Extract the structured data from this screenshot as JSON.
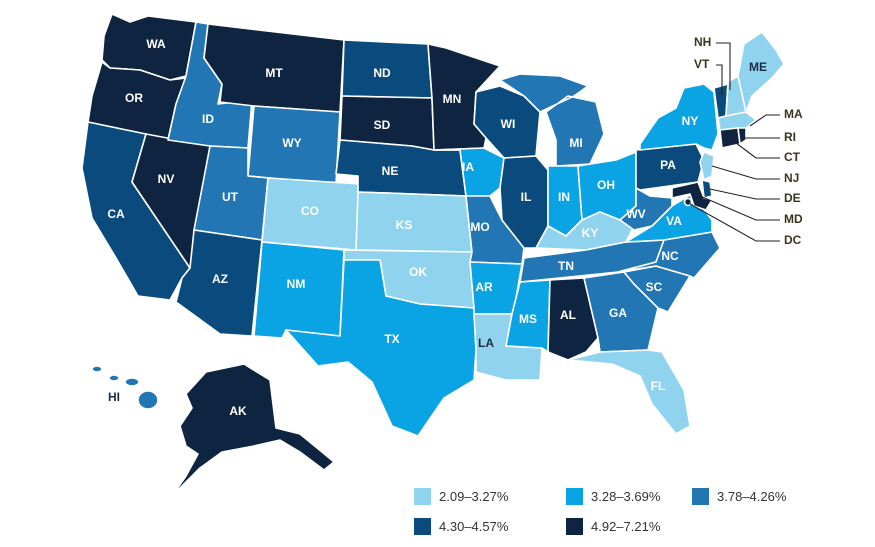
{
  "colors": {
    "bin1": "#8fd3ef",
    "bin2": "#0aa3e3",
    "bin3": "#2176b3",
    "bin4": "#0b4a7c",
    "bin5": "#0e2440"
  },
  "legend": [
    {
      "label": "2.09–3.27%",
      "bin": "bin1"
    },
    {
      "label": "3.28–3.69%",
      "bin": "bin2"
    },
    {
      "label": "3.78–4.26%",
      "bin": "bin3"
    },
    {
      "label": "4.30–4.57%",
      "bin": "bin4"
    },
    {
      "label": "4.92–7.21%",
      "bin": "bin5"
    }
  ],
  "states": {
    "WA": {
      "abbr": "WA",
      "bin": "bin5"
    },
    "OR": {
      "abbr": "OR",
      "bin": "bin5"
    },
    "CA": {
      "abbr": "CA",
      "bin": "bin4"
    },
    "NV": {
      "abbr": "NV",
      "bin": "bin5"
    },
    "ID": {
      "abbr": "ID",
      "bin": "bin3"
    },
    "MT": {
      "abbr": "MT",
      "bin": "bin5"
    },
    "WY": {
      "abbr": "WY",
      "bin": "bin3"
    },
    "UT": {
      "abbr": "UT",
      "bin": "bin3"
    },
    "AZ": {
      "abbr": "AZ",
      "bin": "bin4"
    },
    "CO": {
      "abbr": "CO",
      "bin": "bin1"
    },
    "NM": {
      "abbr": "NM",
      "bin": "bin2"
    },
    "ND": {
      "abbr": "ND",
      "bin": "bin4"
    },
    "SD": {
      "abbr": "SD",
      "bin": "bin5"
    },
    "NE": {
      "abbr": "NE",
      "bin": "bin4"
    },
    "KS": {
      "abbr": "KS",
      "bin": "bin1"
    },
    "OK": {
      "abbr": "OK",
      "bin": "bin1"
    },
    "TX": {
      "abbr": "TX",
      "bin": "bin2"
    },
    "MN": {
      "abbr": "MN",
      "bin": "bin5"
    },
    "IA": {
      "abbr": "IA",
      "bin": "bin2"
    },
    "MO": {
      "abbr": "MO",
      "bin": "bin3"
    },
    "AR": {
      "abbr": "AR",
      "bin": "bin2"
    },
    "LA": {
      "abbr": "LA",
      "bin": "bin1"
    },
    "WI": {
      "abbr": "WI",
      "bin": "bin4"
    },
    "IL": {
      "abbr": "IL",
      "bin": "bin4"
    },
    "MI": {
      "abbr": "MI",
      "bin": "bin3"
    },
    "IN": {
      "abbr": "IN",
      "bin": "bin2"
    },
    "OH": {
      "abbr": "OH",
      "bin": "bin2"
    },
    "KY": {
      "abbr": "KY",
      "bin": "bin1"
    },
    "TN": {
      "abbr": "TN",
      "bin": "bin3"
    },
    "MS": {
      "abbr": "MS",
      "bin": "bin2"
    },
    "AL": {
      "abbr": "AL",
      "bin": "bin5"
    },
    "GA": {
      "abbr": "GA",
      "bin": "bin3"
    },
    "FL": {
      "abbr": "FL",
      "bin": "bin1"
    },
    "SC": {
      "abbr": "SC",
      "bin": "bin3"
    },
    "NC": {
      "abbr": "NC",
      "bin": "bin3"
    },
    "VA": {
      "abbr": "VA",
      "bin": "bin2"
    },
    "WV": {
      "abbr": "WV",
      "bin": "bin3"
    },
    "PA": {
      "abbr": "PA",
      "bin": "bin4"
    },
    "NY": {
      "abbr": "NY",
      "bin": "bin2"
    },
    "ME": {
      "abbr": "ME",
      "bin": "bin1"
    },
    "VT": {
      "abbr": "VT",
      "bin": "bin4"
    },
    "NH": {
      "abbr": "NH",
      "bin": "bin1"
    },
    "MA": {
      "abbr": "MA",
      "bin": "bin1"
    },
    "RI": {
      "abbr": "RI",
      "bin": "bin5"
    },
    "CT": {
      "abbr": "CT",
      "bin": "bin5"
    },
    "NJ": {
      "abbr": "NJ",
      "bin": "bin1"
    },
    "DE": {
      "abbr": "DE",
      "bin": "bin4"
    },
    "MD": {
      "abbr": "MD",
      "bin": "bin5"
    },
    "DC": {
      "abbr": "DC",
      "bin": "bin5"
    },
    "AK": {
      "abbr": "AK",
      "bin": "bin5"
    },
    "HI": {
      "abbr": "HI",
      "bin": "bin3"
    }
  }
}
